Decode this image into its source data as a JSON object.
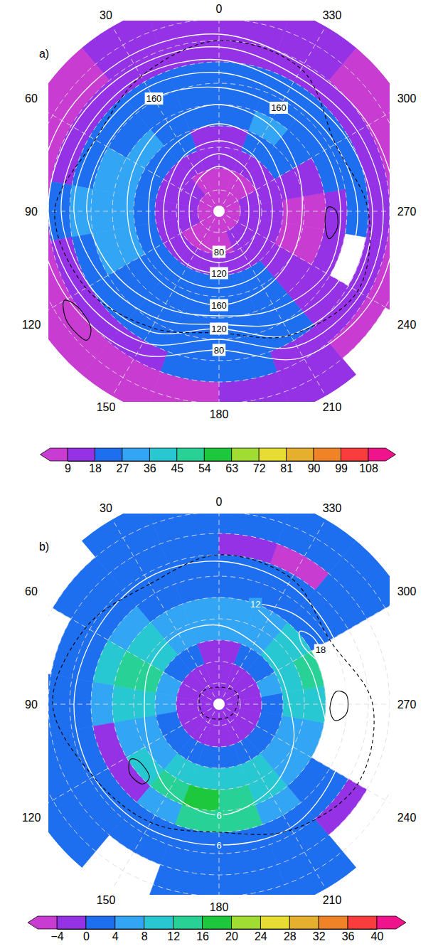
{
  "chart_data": [
    {
      "type": "polar_map",
      "title": "a)",
      "lon_ticks": [
        0,
        30,
        60,
        90,
        120,
        150,
        180,
        210,
        240,
        270,
        300,
        330
      ],
      "lat_grid": [
        0,
        10,
        20,
        30,
        40,
        50,
        60,
        70,
        80
      ],
      "lat_edges": [
        -10,
        0,
        10,
        20,
        30,
        40,
        50,
        60,
        70,
        80,
        90
      ],
      "lon_edges": [
        0,
        20,
        40,
        60,
        80,
        100,
        120,
        140,
        160,
        180,
        200,
        220,
        240,
        260,
        280,
        300,
        320,
        340,
        360
      ],
      "values": [
        [
          12,
          12,
          6,
          5,
          5,
          6,
          6,
          5,
          6,
          12,
          12,
          null,
          5,
          5,
          5,
          5,
          12,
          12
        ],
        [
          12,
          12,
          6,
          5,
          5,
          6,
          6,
          5,
          6,
          12,
          12,
          6,
          5,
          5,
          5,
          5,
          12,
          12
        ],
        [
          14,
          13,
          12,
          14,
          20,
          15,
          13,
          12,
          19,
          19,
          13,
          12,
          10,
          12,
          12,
          13,
          14,
          14
        ],
        [
          21,
          22,
          20,
          24,
          30,
          26,
          22,
          21,
          24,
          23,
          20,
          16,
          null,
          20,
          22,
          22,
          21,
          21
        ],
        [
          23,
          24,
          26,
          30,
          32,
          30,
          25,
          23,
          24,
          24,
          22,
          15,
          14,
          16,
          22,
          24,
          26,
          24
        ],
        [
          22,
          25,
          28,
          30,
          30,
          28,
          24,
          22,
          24,
          24,
          22,
          16,
          8,
          7,
          12,
          22,
          29,
          24
        ],
        [
          16,
          18,
          21,
          22,
          22,
          21,
          20,
          20,
          22,
          20,
          18,
          14,
          8,
          7,
          10,
          18,
          18,
          16
        ],
        [
          12,
          13,
          14,
          15,
          15,
          14,
          14,
          13,
          14,
          13,
          12,
          11,
          10,
          10,
          11,
          12,
          12,
          12
        ],
        [
          7,
          8,
          10,
          11,
          11,
          10,
          8,
          7,
          7,
          8,
          9,
          9,
          9,
          9,
          9,
          8,
          7,
          7
        ],
        [
          5,
          5,
          5,
          5,
          5,
          5,
          5,
          5,
          5,
          5,
          5,
          5,
          5,
          5,
          5,
          5,
          5,
          5
        ]
      ],
      "colorbar": {
        "range": [
          9,
          108
        ],
        "ticks": [
          9,
          18,
          27,
          36,
          45,
          54,
          63,
          72,
          81,
          90,
          99,
          108
        ],
        "colors": [
          "#c83cd2",
          "#9632e6",
          "#1e6ef0",
          "#32a5f5",
          "#28c8d2",
          "#28d296",
          "#1ec83c",
          "#a0dc32",
          "#e6dc32",
          "#e6af2d",
          "#f08228",
          "#fa3c3c",
          "#f0148c"
        ]
      },
      "contours": [
        {
          "level": 80,
          "color": "#ffffff",
          "line_style": "solid",
          "lons": [
            0,
            30,
            60,
            90,
            120,
            150,
            180,
            210,
            240,
            270,
            300,
            330
          ],
          "lats": [
            69,
            72,
            75,
            76,
            75,
            73,
            71,
            73,
            75,
            76,
            75,
            72
          ],
          "label_at": [
            6
          ]
        },
        {
          "level": 100,
          "color": "#ffffff",
          "line_style": "solid",
          "lons": [
            0,
            30,
            60,
            90,
            120,
            150,
            180,
            210,
            240,
            270,
            300,
            330
          ],
          "lats": [
            63,
            66,
            69,
            71,
            69,
            67,
            66,
            67,
            70,
            71,
            70,
            66
          ]
        },
        {
          "level": 120,
          "color": "#ffffff",
          "line_style": "solid",
          "lons": [
            0,
            30,
            60,
            90,
            120,
            150,
            180,
            210,
            240,
            270,
            300,
            330
          ],
          "lats": [
            57,
            59,
            63,
            64,
            63,
            61,
            61,
            62,
            64,
            65,
            64,
            59
          ],
          "label_at": [
            6
          ]
        },
        {
          "level": 140,
          "color": "#ffffff",
          "line_style": "solid",
          "lons": [
            0,
            30,
            60,
            90,
            120,
            150,
            180,
            210,
            240,
            270,
            300,
            330
          ],
          "lats": [
            49,
            52,
            55,
            57,
            55,
            54,
            54,
            55,
            57,
            58,
            57,
            52
          ]
        },
        {
          "level": 160,
          "color": "#ffffff",
          "line_style": "solid",
          "lons": [
            0,
            30,
            60,
            90,
            120,
            150,
            180,
            210,
            240,
            270,
            300,
            330
          ],
          "lats": [
            40,
            42,
            45,
            47,
            47,
            47,
            46,
            48,
            50,
            51,
            48,
            43
          ],
          "label_at": [
            6
          ]
        },
        {
          "level": 160,
          "color": "#ffffff",
          "line_style": "solid",
          "lons": [
            0,
            30,
            60,
            90,
            120,
            150,
            180,
            210,
            240,
            270,
            300,
            330
          ],
          "lats": [
            32,
            29,
            29,
            28,
            33,
            38,
            41,
            37,
            32,
            33,
            33,
            34
          ],
          "label_at": [
            1,
            11
          ]
        },
        {
          "level": 140,
          "color": "#ffffff",
          "line_style": "solid",
          "lons": [
            0,
            30,
            60,
            90,
            120,
            150,
            180,
            210,
            240,
            270,
            300,
            330
          ],
          "lats": [
            25,
            23,
            23,
            22,
            27,
            32,
            37,
            30,
            25,
            25,
            27,
            28
          ]
        },
        {
          "level": 120,
          "color": "#ffffff",
          "line_style": "solid",
          "lons": [
            0,
            30,
            60,
            90,
            120,
            150,
            180,
            210,
            240,
            270,
            300,
            330
          ],
          "lats": [
            19,
            17,
            17,
            16,
            20,
            25,
            35,
            23,
            18,
            18,
            21,
            23
          ],
          "label_at": [
            6
          ]
        },
        {
          "level": 100,
          "color": "#ffffff",
          "line_style": "solid",
          "lons": [
            0,
            30,
            60,
            90,
            120,
            150,
            180,
            210,
            240,
            270,
            300,
            330
          ],
          "lats": [
            13,
            12,
            11,
            10,
            14,
            19,
            30,
            17,
            13,
            13,
            15,
            17
          ]
        },
        {
          "level": 80,
          "color": "#ffffff",
          "line_style": "solid",
          "lons": [
            0,
            30,
            60,
            90,
            120,
            150,
            180,
            210,
            240,
            270,
            300,
            330
          ],
          "lats": [
            7,
            6,
            5,
            5,
            8,
            13,
            25,
            11,
            7,
            7,
            9,
            11
          ],
          "label_at": [
            6
          ]
        },
        {
          "color": "#000000",
          "line_style": "dashed",
          "lons": [
            0,
            30,
            60,
            90,
            120,
            150,
            180,
            210,
            240,
            270,
            300,
            330
          ],
          "lats": [
            10,
            17,
            23,
            13,
            18,
            27,
            33,
            23,
            15,
            20,
            27,
            13
          ]
        },
        {
          "color": "#000000",
          "line_style": "solid",
          "lons": [
            120,
            126,
            134,
            132,
            124
          ],
          "lats": [
            6,
            2,
            3,
            9,
            10
          ]
        },
        {
          "color": "#000000",
          "line_style": "solid",
          "lons": [
            256,
            262,
            270,
            272,
            264
          ],
          "lats": [
            37,
            34,
            35,
            39,
            40
          ]
        }
      ]
    },
    {
      "type": "polar_map",
      "title": "b)",
      "lon_ticks": [
        0,
        30,
        60,
        90,
        120,
        150,
        180,
        210,
        240,
        270,
        300,
        330
      ],
      "lat_grid": [
        0,
        10,
        20,
        30,
        40,
        50,
        60,
        70,
        80
      ],
      "lat_edges": [
        -10,
        0,
        10,
        20,
        30,
        40,
        50,
        60,
        70,
        80,
        90
      ],
      "lon_edges": [
        0,
        20,
        40,
        60,
        80,
        100,
        120,
        140,
        160,
        180,
        200,
        220,
        240,
        260,
        280,
        300,
        320,
        340,
        360
      ],
      "values": [
        [
          2,
          2,
          null,
          null,
          2,
          2,
          2,
          null,
          2,
          2,
          2,
          null,
          null,
          null,
          null,
          2,
          2,
          2
        ],
        [
          2,
          2,
          2,
          null,
          2,
          2,
          2,
          null,
          2,
          2,
          2,
          null,
          null,
          null,
          null,
          2,
          2,
          2
        ],
        [
          2,
          2,
          2,
          2,
          2,
          2,
          2,
          2,
          2,
          2,
          2,
          -2,
          null,
          null,
          null,
          2,
          -6,
          -2
        ],
        [
          2,
          2,
          3,
          3,
          2,
          2,
          2,
          3,
          3,
          2,
          2,
          2,
          null,
          null,
          null,
          2,
          2,
          2
        ],
        [
          3,
          3,
          5,
          9,
          6,
          -2,
          -2,
          6,
          13,
          12,
          6,
          3,
          null,
          null,
          null,
          3,
          2,
          3
        ],
        [
          5,
          6,
          9,
          13,
          10,
          6,
          8,
          13,
          18,
          15,
          10,
          6,
          6,
          9,
          12,
          10,
          5,
          4
        ],
        [
          4,
          6,
          10,
          12,
          10,
          6,
          6,
          8,
          10,
          9,
          8,
          6,
          6,
          8,
          10,
          8,
          6,
          4
        ],
        [
          -2,
          2,
          3,
          5,
          5,
          3,
          2,
          2,
          3,
          2,
          2,
          2,
          2,
          3,
          5,
          3,
          2,
          -2
        ],
        [
          -2,
          -2,
          -2,
          -2,
          -2,
          -2,
          -2,
          -2,
          -2,
          -2,
          -2,
          -2,
          -2,
          -2,
          -2,
          -2,
          -2,
          -2
        ],
        [
          -2,
          -2,
          -2,
          -2,
          -2,
          -2,
          -2,
          -2,
          -2,
          -2,
          -2,
          -2,
          -2,
          -2,
          -2,
          -2,
          -2,
          -2
        ]
      ],
      "colorbar": {
        "range": [
          -4,
          40
        ],
        "ticks": [
          {
            "value": -4,
            "label": "−4"
          },
          0,
          4,
          8,
          12,
          16,
          20,
          24,
          28,
          32,
          36,
          40
        ],
        "colors": [
          "#c83cd2",
          "#9632e6",
          "#1e6ef0",
          "#32a5f5",
          "#28c8d2",
          "#28d296",
          "#1ec83c",
          "#a0dc32",
          "#e6dc32",
          "#e6af2d",
          "#f08228",
          "#fa3c3c",
          "#f0148c"
        ]
      },
      "contours": [
        {
          "level": 6,
          "color": "#ffffff",
          "line_style": "solid",
          "lons": [
            0,
            30,
            60,
            90,
            120,
            150,
            180,
            210,
            240,
            270,
            300,
            330
          ],
          "lats": [
            53,
            52,
            53,
            55,
            52,
            43,
            38,
            43,
            50,
            57,
            58,
            57
          ],
          "label_at": [
            6
          ]
        },
        {
          "level": 12,
          "color": "#ffffff",
          "line_style": "solid",
          "lons": [
            260,
            280,
            300,
            320,
            340,
            330,
            310,
            290,
            270
          ],
          "lats": [
            38,
            34,
            33,
            35,
            40,
            44,
            45,
            44,
            42
          ],
          "label_at": [
            4
          ]
        },
        {
          "level": 18,
          "color": "#ffffff",
          "line_style": "solid",
          "lons": [
            292,
            298,
            306,
            312,
            306,
            298
          ],
          "lats": [
            38,
            36,
            36,
            39,
            42,
            41
          ],
          "label_at": [
            1
          ]
        },
        {
          "level": 6,
          "color": "#ffffff",
          "line_style": "solid",
          "lons": [
            0,
            30,
            60,
            90,
            120,
            150,
            180,
            210,
            240,
            270,
            300,
            330
          ],
          "lats": [
            23,
            22,
            23,
            22,
            22,
            23,
            24,
            23,
            27,
            30,
            28,
            25
          ],
          "label_at": [
            6
          ]
        },
        {
          "color": "#000000",
          "line_style": "dashed",
          "lons": [
            0,
            60,
            120,
            180,
            240,
            300
          ],
          "lats": [
            82,
            80,
            81,
            83,
            82,
            80
          ]
        },
        {
          "color": "#000000",
          "line_style": "dashed",
          "lons": [
            0,
            30,
            60,
            90,
            120,
            150,
            180,
            210,
            240,
            270,
            300,
            330
          ],
          "lats": [
            20,
            25,
            18,
            12,
            22,
            26,
            30,
            22,
            15,
            18,
            30,
            22
          ]
        },
        {
          "color": "#000000",
          "line_style": "solid",
          "lons": [
            122,
            128,
            136,
            136,
            126
          ],
          "lats": [
            41,
            37,
            38,
            43,
            44
          ]
        },
        {
          "color": "#000000",
          "line_style": "solid",
          "lons": [
            262,
            266,
            274,
            276,
            268
          ],
          "lats": [
            35,
            30,
            30,
            35,
            38
          ]
        }
      ]
    }
  ]
}
